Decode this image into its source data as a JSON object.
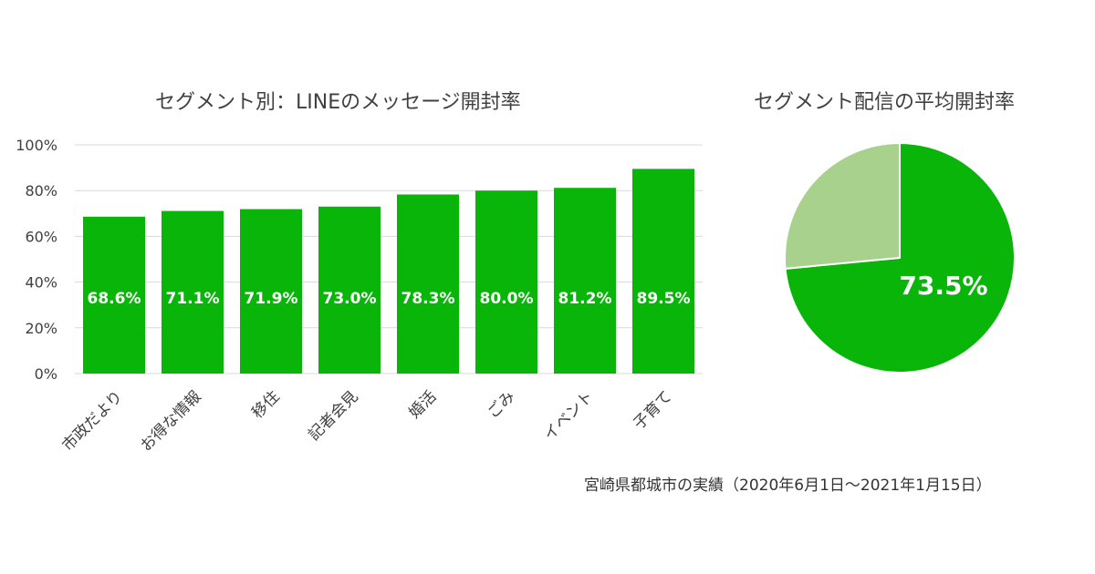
{
  "chart_data": [
    {
      "type": "bar",
      "title": "セグメント別：LINEのメッセージ開封率",
      "categories": [
        "市政だより",
        "お得な情報",
        "移住",
        "記者会見",
        "婚活",
        "ごみ",
        "イベント",
        "子育て"
      ],
      "values": [
        68.6,
        71.1,
        71.9,
        73.0,
        78.3,
        80.0,
        81.2,
        89.5
      ],
      "value_labels": [
        "68.6%",
        "71.1%",
        "71.9%",
        "73.0%",
        "78.3%",
        "80.0%",
        "81.2%",
        "89.5%"
      ],
      "yticks": [
        "0%",
        "20%",
        "40%",
        "60%",
        "80%",
        "100%"
      ],
      "ylim": [
        0,
        100
      ],
      "grid": true,
      "colors": {
        "bar": "#0ab50a",
        "grid": "#d9d9d9",
        "label": "#ffffff"
      }
    },
    {
      "type": "pie",
      "title": "セグメント配信の平均開封率",
      "values": [
        73.5,
        26.5
      ],
      "value_label": "73.5%",
      "colors": [
        "#0ab50a",
        "#a9d18e"
      ]
    }
  ],
  "footnote": "宮崎県都城市の実績（2020年6月1日～2021年1月15日）"
}
